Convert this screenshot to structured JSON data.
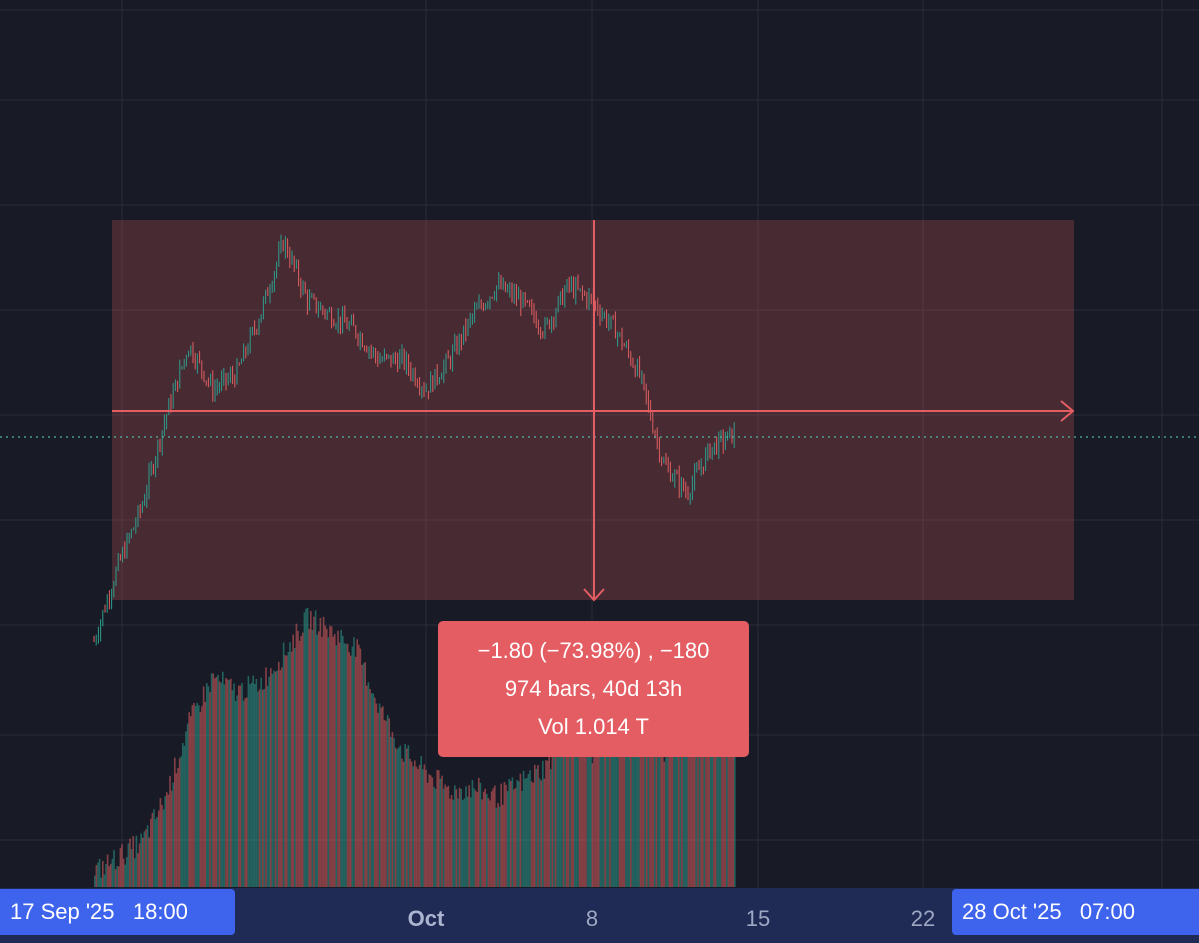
{
  "colors": {
    "background": "#181b26",
    "grid": "#2a2e3b",
    "range_fill": "rgba(224,90,96,0.24)",
    "accent_red": "#e35d63",
    "candle_up": "#2e9d8c",
    "candle_down": "#e05f60",
    "price_line": "#4fb7a8",
    "axis_bg": "#1f2a55",
    "badge_bg": "#3e63ec"
  },
  "measure": {
    "line1": "−1.80 (−73.98%) , −180",
    "line2": "974 bars, 40d 13h",
    "line3": "Vol 1.014 T"
  },
  "time_axis": {
    "start_badge": "17 Sep '25   18:00",
    "end_badge": "28 Oct '25   07:00",
    "ticks": [
      {
        "label": "Oct",
        "bold": true
      },
      {
        "label": "8",
        "bold": false
      },
      {
        "label": "15",
        "bold": false
      },
      {
        "label": "22",
        "bold": false
      }
    ]
  },
  "chart_data": {
    "type": "candlestick",
    "x_range": [
      "2025-09-17",
      "2025-10-28"
    ],
    "price_path": [
      {
        "date": "2025-09-17",
        "close": 0.4
      },
      {
        "date": "2025-09-18",
        "close": 0.9
      },
      {
        "date": "2025-09-19",
        "close": 1.3
      },
      {
        "date": "2025-09-20",
        "close": 1.9
      },
      {
        "date": "2025-09-21",
        "close": 2.4
      },
      {
        "date": "2025-09-22",
        "close": 2.1
      },
      {
        "date": "2025-09-23",
        "close": 2.2
      },
      {
        "date": "2025-09-24",
        "close": 2.6
      },
      {
        "date": "2025-09-25",
        "close": 3.1
      },
      {
        "date": "2025-09-26",
        "close": 2.7
      },
      {
        "date": "2025-09-27",
        "close": 2.6
      },
      {
        "date": "2025-09-28",
        "close": 2.5
      },
      {
        "date": "2025-09-29",
        "close": 2.3
      },
      {
        "date": "2025-09-30",
        "close": 2.3
      },
      {
        "date": "2025-10-01",
        "close": 2.1
      },
      {
        "date": "2025-10-02",
        "close": 2.3
      },
      {
        "date": "2025-10-03",
        "close": 2.6
      },
      {
        "date": "2025-10-04",
        "close": 2.8
      },
      {
        "date": "2025-10-05",
        "close": 2.7
      },
      {
        "date": "2025-10-06",
        "close": 2.5
      },
      {
        "date": "2025-10-07",
        "close": 2.8
      },
      {
        "date": "2025-10-08",
        "close": 2.7
      },
      {
        "date": "2025-10-09",
        "close": 2.5
      },
      {
        "date": "2025-10-10",
        "close": 2.2
      },
      {
        "date": "2025-10-11",
        "close": 1.6
      },
      {
        "date": "2025-10-12",
        "close": 1.4
      },
      {
        "date": "2025-10-13",
        "close": 1.7
      },
      {
        "date": "2025-10-14",
        "close": 1.8
      }
    ],
    "measure_range": {
      "change": -1.8,
      "percent": -73.98,
      "ticks": -180,
      "bars": 974,
      "duration": "40d 13h",
      "volume": "1.014 T"
    },
    "volume_profile": [
      0.05,
      0.1,
      0.15,
      0.3,
      0.55,
      0.7,
      0.65,
      0.68,
      0.78,
      0.9,
      0.85,
      0.8,
      0.6,
      0.45,
      0.38,
      0.32,
      0.33,
      0.3,
      0.35,
      0.4,
      0.5,
      0.45,
      0.6,
      0.55,
      0.45,
      0.5,
      0.62,
      0.6
    ]
  }
}
